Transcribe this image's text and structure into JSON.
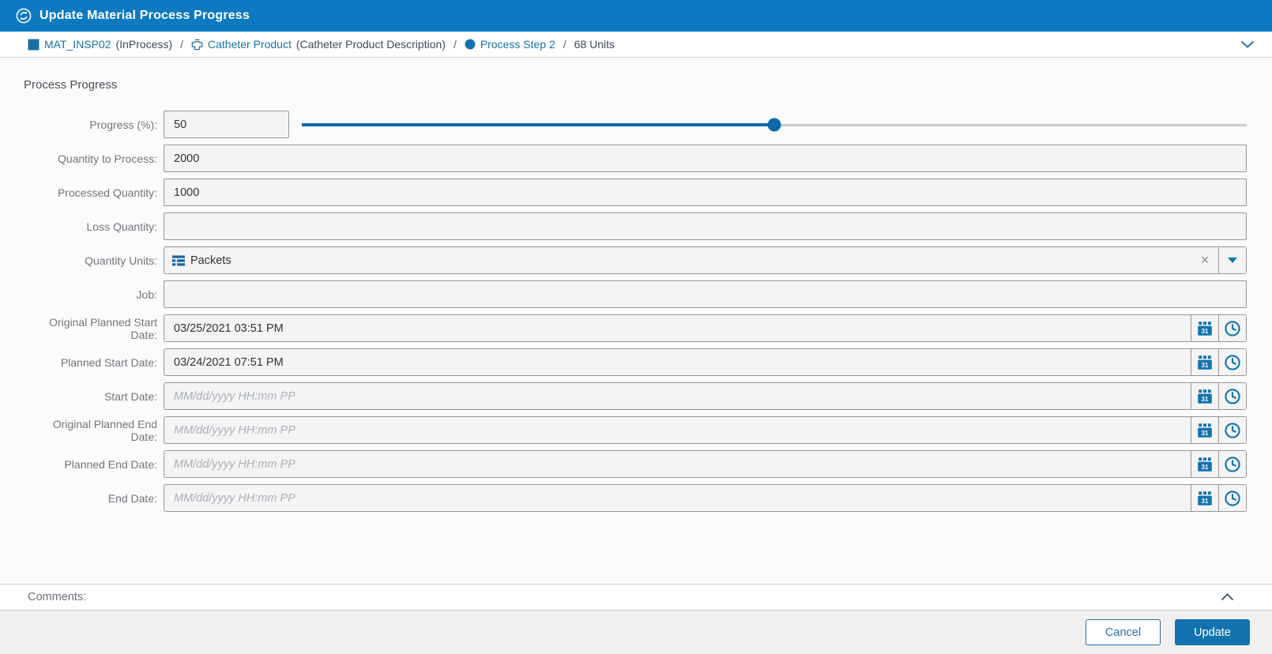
{
  "header": {
    "title": "Update Material Process Progress",
    "icon": "sync-icon"
  },
  "breadcrumb": {
    "separator": "/",
    "items": [
      {
        "icon": "material-square-icon",
        "label": "MAT_INSP02",
        "detail": "(InProcess)"
      },
      {
        "icon": "product-icon",
        "label": "Catheter Product",
        "detail": "(Catheter Product Description)"
      },
      {
        "icon": "process-step-icon",
        "label": "Process Step 2",
        "detail": ""
      },
      {
        "icon": "",
        "label": "68 Units",
        "detail": ""
      }
    ]
  },
  "form": {
    "section_title": "Process Progress",
    "progress": {
      "label": "Progress (%):",
      "value": "50",
      "percent": 50
    },
    "quantity_to_process": {
      "label": "Quantity to Process:",
      "value": "2000"
    },
    "processed_quantity": {
      "label": "Processed Quantity:",
      "value": "1000"
    },
    "loss_quantity": {
      "label": "Loss Quantity:",
      "value": ""
    },
    "quantity_units": {
      "label": "Quantity Units:",
      "value": "Packets",
      "icon": "units-list-icon",
      "clear": "×"
    },
    "job": {
      "label": "Job:",
      "value": ""
    },
    "dates": [
      {
        "label": "Original Planned Start Date:",
        "value": "03/25/2021 03:51 PM",
        "placeholder": "MM/dd/yyyy HH:mm PP"
      },
      {
        "label": "Planned Start Date:",
        "value": "03/24/2021 07:51 PM",
        "placeholder": "MM/dd/yyyy HH:mm PP"
      },
      {
        "label": "Start Date:",
        "value": "",
        "placeholder": "MM/dd/yyyy HH:mm PP"
      },
      {
        "label": "Original Planned End Date:",
        "value": "",
        "placeholder": "MM/dd/yyyy HH:mm PP"
      },
      {
        "label": "Planned End Date:",
        "value": "",
        "placeholder": "MM/dd/yyyy HH:mm PP"
      },
      {
        "label": "End Date:",
        "value": "",
        "placeholder": "MM/dd/yyyy HH:mm PP"
      }
    ]
  },
  "comments": {
    "label": "Comments:"
  },
  "footer": {
    "cancel_label": "Cancel",
    "update_label": "Update"
  },
  "colors": {
    "header_bg": "#0d79c1",
    "accent": "#1273ae",
    "link_blue": "#19719f",
    "slider_blue": "#0b6aa9",
    "input_bg": "#f4f4f4",
    "input_border": "#979797",
    "footer_bg": "#f0f0f0"
  }
}
